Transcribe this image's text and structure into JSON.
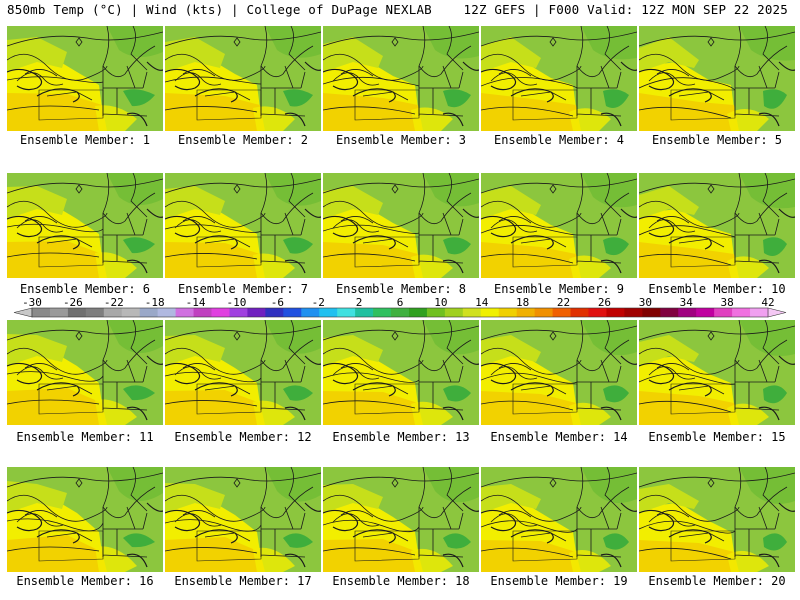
{
  "header": {
    "left": "850mb Temp (°C) | Wind (kts) | College of DuPage NEXLAB",
    "right": "12Z GEFS | F000 Valid: 12Z MON SEP 22 2025"
  },
  "caption_prefix": "Ensemble Member: ",
  "members": [
    1,
    2,
    3,
    4,
    5,
    6,
    7,
    8,
    9,
    10,
    11,
    12,
    13,
    14,
    15,
    16,
    17,
    18,
    19,
    20
  ],
  "colorbar": {
    "ticks": [
      "-30",
      "-26",
      "-22",
      "-18",
      "-14",
      "-10",
      "-6",
      "-2",
      "2",
      "6",
      "10",
      "14",
      "18",
      "22",
      "26",
      "30",
      "34",
      "38",
      "42"
    ],
    "colors": [
      "#8a8a8a",
      "#9a9a9a",
      "#707070",
      "#7e7e7e",
      "#a8a8a8",
      "#b8b8b8",
      "#9aa8c8",
      "#b0b8e0",
      "#d070e0",
      "#c040c0",
      "#e040e0",
      "#a040e0",
      "#7020c0",
      "#3030c0",
      "#2050e0",
      "#2090f0",
      "#20c0f0",
      "#40e0e0",
      "#20c0a0",
      "#30c060",
      "#40b040",
      "#30a020",
      "#70c020",
      "#a0d020",
      "#d0e020",
      "#f0f000",
      "#f0d000",
      "#f0b000",
      "#f09000",
      "#f06000",
      "#e03000",
      "#e01010",
      "#c00000",
      "#a00000",
      "#800000",
      "#800040",
      "#a00080",
      "#c000a0",
      "#e040c0",
      "#f070e0",
      "#f0a0f0"
    ]
  },
  "map": {
    "colors": {
      "bg": "#8cc63e",
      "yellow": "#f2ee00",
      "gold": "#f2d200",
      "yellowgreen": "#c6df1a",
      "darkgreen": "#3fae3c",
      "green": "#62b830"
    }
  }
}
